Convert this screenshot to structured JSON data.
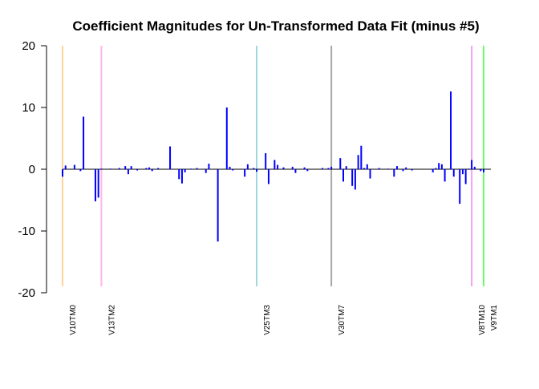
{
  "chart_data": {
    "type": "bar",
    "title": "Coefficient Magnitudes for Un-Transformed Data Fit (minus #5)",
    "xlabel": "",
    "ylabel": "",
    "ylim": [
      -20,
      20
    ],
    "yticks": [
      -20,
      -10,
      0,
      10,
      20
    ],
    "x_range": [
      1,
      142
    ],
    "bar_color": "#0000ff",
    "zero_line_color": "#000000",
    "marker_lines": [
      {
        "label": "V10TM0",
        "x": 1,
        "color": "#ffd39b"
      },
      {
        "label": "V13TM2",
        "x": 14,
        "color": "#ffb6e6"
      },
      {
        "label": "V25TM3",
        "x": 66,
        "color": "#9fd7e0"
      },
      {
        "label": "V30TM7",
        "x": 91,
        "color": "#a8a8a8"
      },
      {
        "label": "V8TM10",
        "x": 138,
        "color": "#f0a0f0"
      },
      {
        "label": "V9TM1",
        "x": 142,
        "color": "#66ff66"
      }
    ],
    "bars": [
      {
        "x": 1,
        "y": -1.2
      },
      {
        "x": 2,
        "y": 0.6
      },
      {
        "x": 5,
        "y": 0.7
      },
      {
        "x": 7,
        "y": -0.3
      },
      {
        "x": 8,
        "y": 8.5
      },
      {
        "x": 12,
        "y": -5.2
      },
      {
        "x": 13,
        "y": -4.6
      },
      {
        "x": 14,
        "y": 0.1
      },
      {
        "x": 17,
        "y": 0.1
      },
      {
        "x": 20,
        "y": 0.2
      },
      {
        "x": 22,
        "y": 0.5
      },
      {
        "x": 23,
        "y": -0.8
      },
      {
        "x": 24,
        "y": 0.5
      },
      {
        "x": 26,
        "y": -0.2
      },
      {
        "x": 29,
        "y": 0.2
      },
      {
        "x": 30,
        "y": 0.3
      },
      {
        "x": 31,
        "y": -0.3
      },
      {
        "x": 33,
        "y": 0.2
      },
      {
        "x": 37,
        "y": 3.7
      },
      {
        "x": 40,
        "y": -1.6
      },
      {
        "x": 41,
        "y": -2.3
      },
      {
        "x": 42,
        "y": -0.5
      },
      {
        "x": 44,
        "y": 0.1
      },
      {
        "x": 46,
        "y": 0.2
      },
      {
        "x": 49,
        "y": -0.6
      },
      {
        "x": 50,
        "y": 0.9
      },
      {
        "x": 53,
        "y": -11.7
      },
      {
        "x": 56,
        "y": 10.0
      },
      {
        "x": 57,
        "y": 0.4
      },
      {
        "x": 58,
        "y": -0.2
      },
      {
        "x": 62,
        "y": -1.2
      },
      {
        "x": 63,
        "y": 0.8
      },
      {
        "x": 65,
        "y": 0.2
      },
      {
        "x": 66,
        "y": -0.4
      },
      {
        "x": 69,
        "y": 2.6
      },
      {
        "x": 70,
        "y": -2.4
      },
      {
        "x": 72,
        "y": 1.5
      },
      {
        "x": 73,
        "y": 0.7
      },
      {
        "x": 75,
        "y": 0.3
      },
      {
        "x": 78,
        "y": 0.4
      },
      {
        "x": 79,
        "y": -0.6
      },
      {
        "x": 82,
        "y": 0.3
      },
      {
        "x": 83,
        "y": -0.3
      },
      {
        "x": 88,
        "y": 0.2
      },
      {
        "x": 90,
        "y": 0.2
      },
      {
        "x": 91,
        "y": 0.4
      },
      {
        "x": 94,
        "y": 1.8
      },
      {
        "x": 95,
        "y": -2.0
      },
      {
        "x": 96,
        "y": 0.5
      },
      {
        "x": 98,
        "y": -2.7
      },
      {
        "x": 99,
        "y": -3.3
      },
      {
        "x": 100,
        "y": 2.3
      },
      {
        "x": 101,
        "y": 3.8
      },
      {
        "x": 102,
        "y": 0.2
      },
      {
        "x": 103,
        "y": 0.8
      },
      {
        "x": 104,
        "y": -1.5
      },
      {
        "x": 107,
        "y": 0.2
      },
      {
        "x": 110,
        "y": 0.1
      },
      {
        "x": 112,
        "y": -1.2
      },
      {
        "x": 113,
        "y": 0.5
      },
      {
        "x": 115,
        "y": -0.3
      },
      {
        "x": 116,
        "y": 0.3
      },
      {
        "x": 118,
        "y": -0.2
      },
      {
        "x": 125,
        "y": -0.5
      },
      {
        "x": 126,
        "y": 0.2
      },
      {
        "x": 127,
        "y": 1.0
      },
      {
        "x": 128,
        "y": 0.8
      },
      {
        "x": 129,
        "y": -2.0
      },
      {
        "x": 131,
        "y": 12.6
      },
      {
        "x": 132,
        "y": -1.2
      },
      {
        "x": 134,
        "y": -5.6
      },
      {
        "x": 135,
        "y": -0.8
      },
      {
        "x": 136,
        "y": -2.4
      },
      {
        "x": 137,
        "y": 0.1
      },
      {
        "x": 138,
        "y": 1.5
      },
      {
        "x": 139,
        "y": 0.4
      },
      {
        "x": 141,
        "y": -0.3
      },
      {
        "x": 142,
        "y": -0.5
      }
    ]
  }
}
